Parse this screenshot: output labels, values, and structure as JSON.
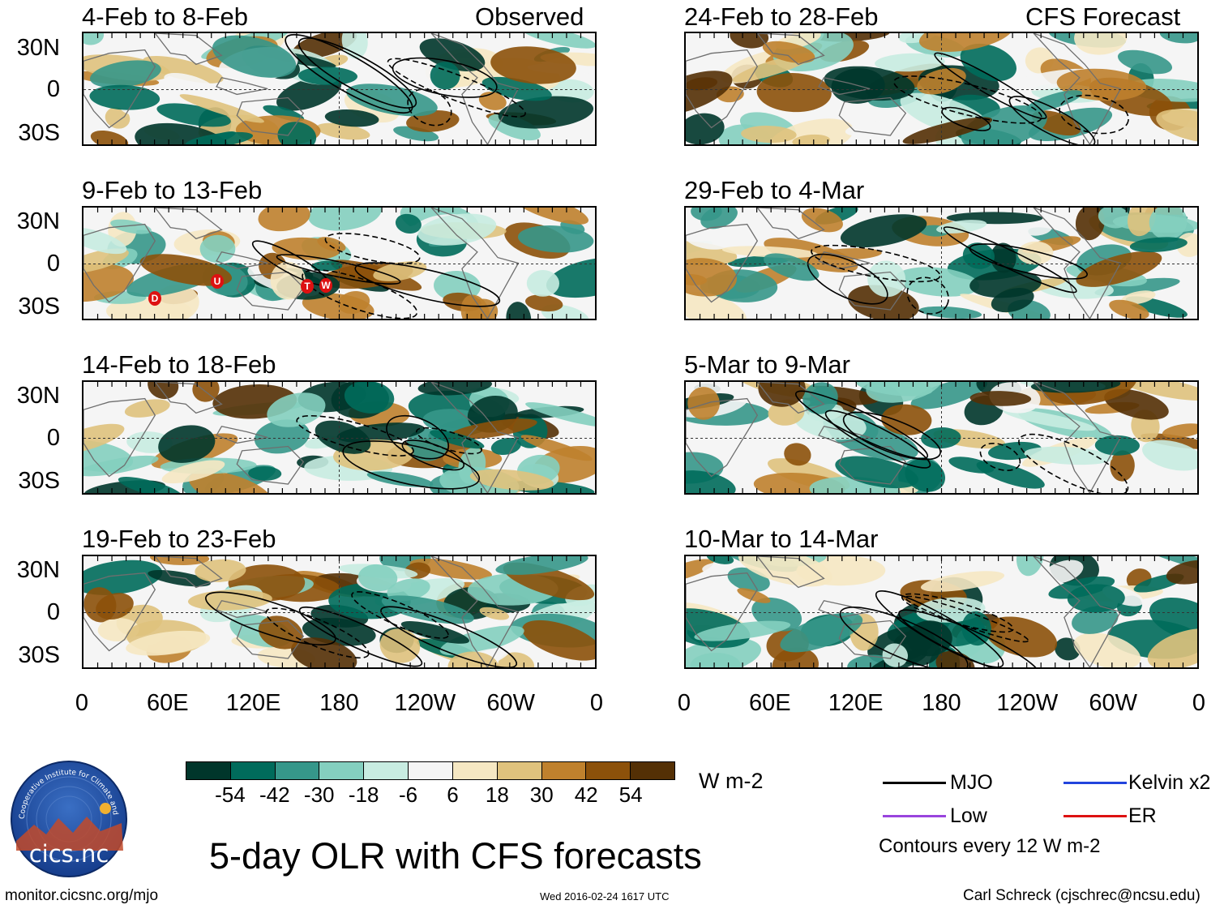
{
  "headers": {
    "observed": "Observed",
    "forecast": "CFS Forecast"
  },
  "panels_left": [
    {
      "title": "4-Feb to 8-Feb"
    },
    {
      "title": "9-Feb to 13-Feb"
    },
    {
      "title": "14-Feb to 18-Feb"
    },
    {
      "title": "19-Feb to 23-Feb"
    }
  ],
  "panels_right": [
    {
      "title": "24-Feb to 28-Feb"
    },
    {
      "title": "29-Feb to 4-Mar"
    },
    {
      "title": "5-Mar to 9-Mar"
    },
    {
      "title": "10-Mar to 14-Mar"
    }
  ],
  "wave_markers": [
    "D",
    "U",
    "T",
    "W"
  ],
  "chart_data": {
    "type": "heatmap",
    "title": "5-day OLR with CFS forecasts",
    "variable": "OLR anomaly",
    "units": "W m-2",
    "y_ticks": [
      "30N",
      "0",
      "30S"
    ],
    "x_ticks": [
      "0",
      "60E",
      "120E",
      "180",
      "120W",
      "60W",
      "0"
    ],
    "colorbar": {
      "labels": [
        "-54",
        "-42",
        "-30",
        "-18",
        "-6",
        "6",
        "18",
        "30",
        "42",
        "54"
      ],
      "colors": [
        "#00362b",
        "#006b5b",
        "#36978a",
        "#84cfbf",
        "#c8ece1",
        "#f5f5f5",
        "#f6e8c3",
        "#dfc27d",
        "#bf812d",
        "#8c510a",
        "#543005"
      ]
    },
    "contour_interval_text": "Contours every 12 W m-2"
  },
  "legend": [
    {
      "label": "MJO",
      "color": "#000000"
    },
    {
      "label": "Kelvin x2",
      "color": "#2244dd"
    },
    {
      "label": "Low",
      "color": "#9944dd"
    },
    {
      "label": "ER",
      "color": "#dd1111"
    }
  ],
  "footer": {
    "logo_text": "cics.nc",
    "logo_arc": "Cooperative Institute for Climate and Satellites",
    "left": "monitor.cicsnc.org/mjo",
    "center": "Wed 2016-02-24 1617 UTC",
    "right": "Carl Schreck (cjschrec@ncsu.edu)"
  }
}
